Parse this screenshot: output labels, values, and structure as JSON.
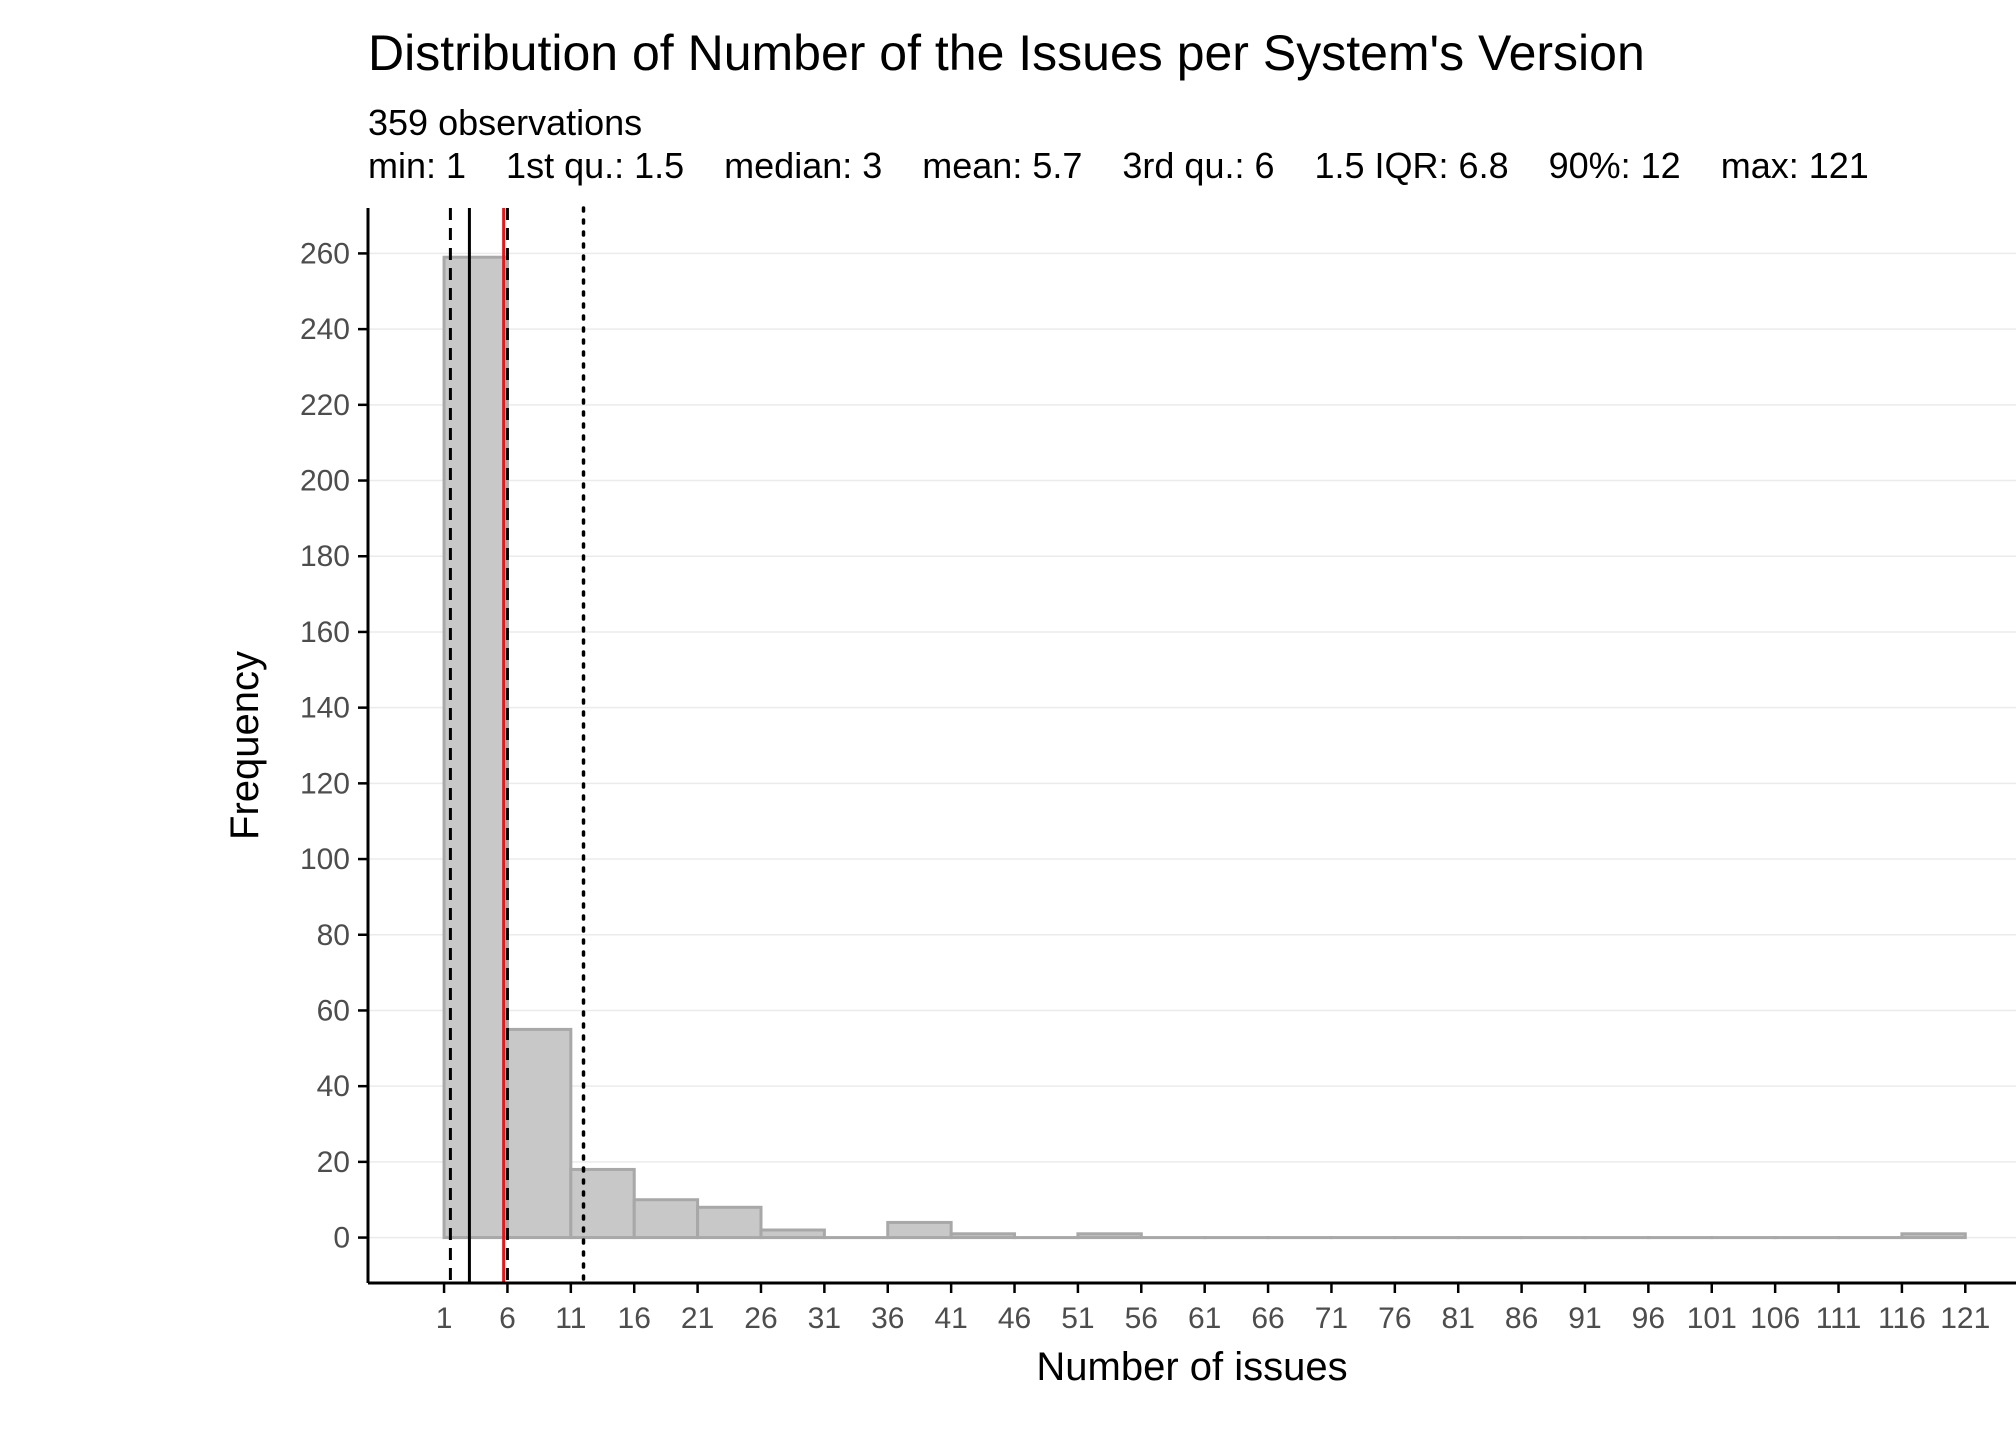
{
  "chart_data": {
    "type": "bar",
    "title": "Distribution of Number of the Issues per System's Version",
    "subtitle_lines": [
      "359 observations",
      "min: 1    1st qu.: 1.5    median: 3    mean: 5.7    3rd qu.: 6    1.5 IQR: 6.8    90%: 12    max: 121"
    ],
    "xlabel": "Number of issues",
    "ylabel": "Frequency",
    "bin_width": 5,
    "bin_starts": [
      1,
      6,
      11,
      16,
      21,
      26,
      31,
      36,
      41,
      46,
      51,
      56,
      61,
      66,
      71,
      76,
      81,
      86,
      91,
      96,
      101,
      106,
      111,
      116
    ],
    "values": [
      259,
      55,
      18,
      10,
      8,
      2,
      0,
      4,
      1,
      0,
      1,
      0,
      0,
      0,
      0,
      0,
      0,
      0,
      0,
      0,
      0,
      0,
      0,
      1
    ],
    "x_ticks": [
      1,
      6,
      11,
      16,
      21,
      26,
      31,
      36,
      41,
      46,
      51,
      56,
      61,
      66,
      71,
      76,
      81,
      86,
      91,
      96,
      101,
      106,
      111,
      116,
      121
    ],
    "y_ticks": [
      0,
      20,
      40,
      60,
      80,
      100,
      120,
      140,
      160,
      180,
      200,
      220,
      240,
      260
    ],
    "xlim": [
      -5,
      125
    ],
    "ylim": [
      -12,
      272
    ],
    "grid": "horizontal major",
    "reference_lines": [
      {
        "name": "1st qu.",
        "x": 1.5,
        "style": "dashed",
        "color": "#000000"
      },
      {
        "name": "median",
        "x": 3,
        "style": "solid",
        "color": "#000000"
      },
      {
        "name": "3rd qu.",
        "x": 6,
        "style": "dashed",
        "color": "#000000"
      },
      {
        "name": "mean",
        "x": 5.7,
        "style": "solid",
        "color": "#e31a1c"
      },
      {
        "name": "90%",
        "x": 12,
        "style": "dotted",
        "color": "#000000"
      }
    ],
    "colors": {
      "bar_fill": "#c8c8c8",
      "bar_stroke": "#a8a8a8",
      "mean_line": "#e31a1c",
      "grid": "#ebebeb"
    }
  }
}
